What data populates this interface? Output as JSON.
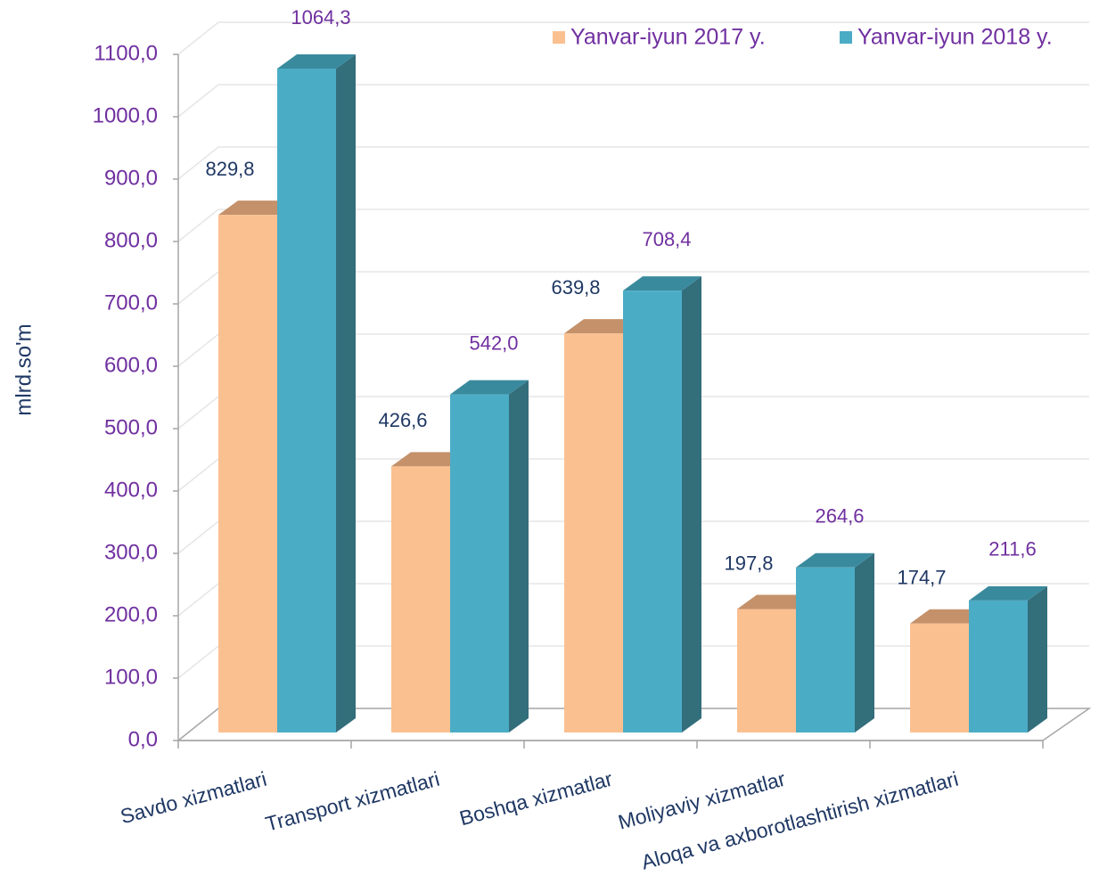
{
  "chart_data": {
    "type": "bar3d",
    "axis_label": "mlrd.so'm",
    "categories": [
      "Savdo xizmatlari",
      "Transport xizmatlari",
      "Boshqa xizmatlar",
      "Moliyaviy xizmatlar",
      "Aloqa va axborotlashtirish xizmatlari"
    ],
    "series": [
      {
        "name": "Yanvar-iyun 2017 y.",
        "color": "#fac090",
        "values": [
          829.8,
          426.6,
          639.8,
          197.8,
          174.7
        ],
        "value_labels": [
          "829,8",
          "426,6",
          "639,8",
          "197,8",
          "174,7"
        ]
      },
      {
        "name": "Yanvar-iyun 2018 y.",
        "color": "#4bacc6",
        "values": [
          1064.3,
          542.0,
          708.4,
          264.6,
          211.6
        ],
        "value_labels": [
          "1064,3",
          "542,0",
          "708,4",
          "264,6",
          "211,6"
        ]
      }
    ],
    "ylim": [
      0,
      1100
    ],
    "yticks": [
      {
        "value": 0,
        "label": "0,0"
      },
      {
        "value": 100,
        "label": "100,0"
      },
      {
        "value": 200,
        "label": "200,0"
      },
      {
        "value": 300,
        "label": "300,0"
      },
      {
        "value": 400,
        "label": "400,0"
      },
      {
        "value": 500,
        "label": "500,0"
      },
      {
        "value": 600,
        "label": "600,0"
      },
      {
        "value": 700,
        "label": "700,0"
      },
      {
        "value": 800,
        "label": "800,0"
      },
      {
        "value": 900,
        "label": "900,0"
      },
      {
        "value": 1000,
        "label": "1000,0"
      },
      {
        "value": 1100,
        "label": "1100,0"
      }
    ],
    "grid": true,
    "legend": "top-right"
  }
}
